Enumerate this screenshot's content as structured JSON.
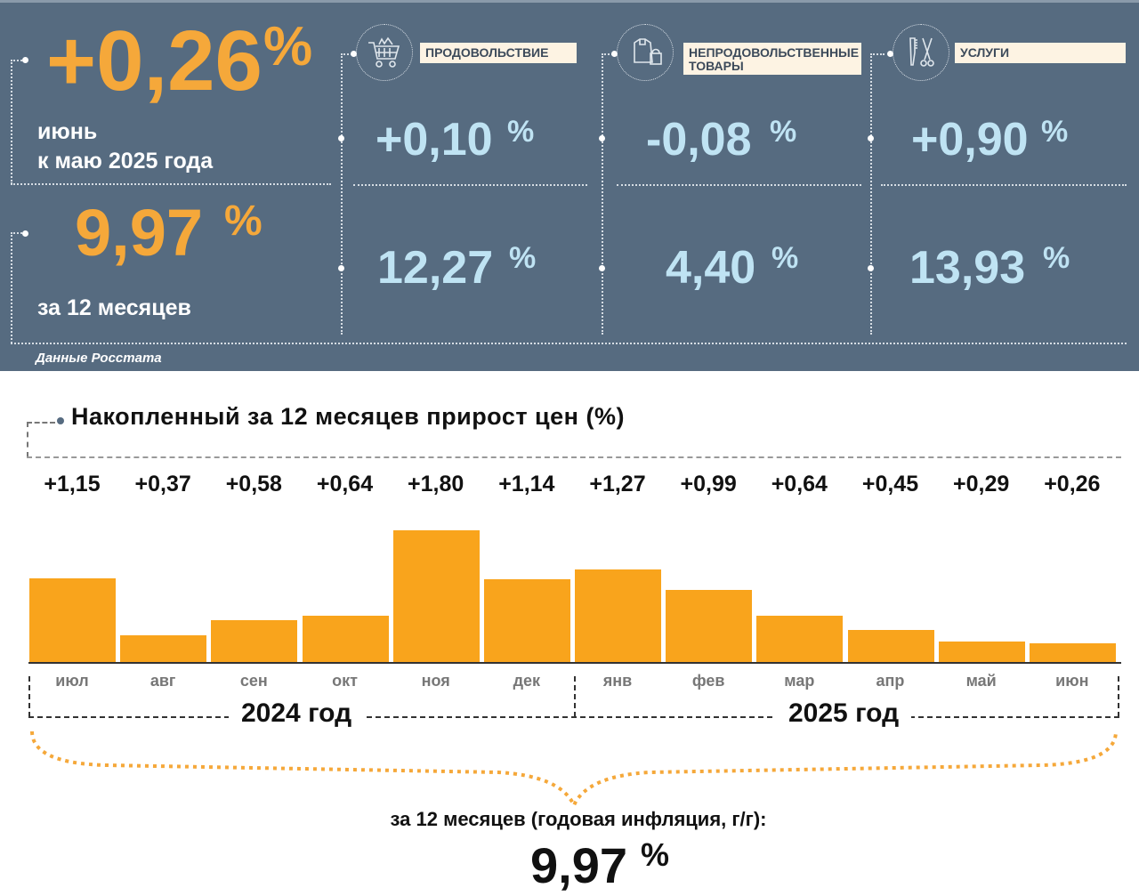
{
  "summary": {
    "monthly": {
      "value": "+0,26",
      "pct": "%",
      "label1": "июнь",
      "label2": "к маю 2025 года"
    },
    "annual": {
      "value": "9,97",
      "pct": "%",
      "label": "за 12 месяцев"
    },
    "source": "Данные Росстата"
  },
  "categories": [
    {
      "name": "ПРОДОВОЛЬСТВИЕ",
      "icon": "shopping-cart-icon",
      "monthly": "+0,10",
      "annual": "12,27"
    },
    {
      "name": "НЕПРОДОВОЛЬСТВЕННЫЕ ТОВАРЫ",
      "icon": "clothing-bag-icon",
      "monthly": "-0,08",
      "annual": "4,40"
    },
    {
      "name": "УСЛУГИ",
      "icon": "comb-scissors-icon",
      "monthly": "+0,90",
      "annual": "13,93"
    }
  ],
  "pct_sign": "%",
  "chart_data": {
    "type": "bar",
    "title": "Накопленный за 12 месяцев прирост цен (%)",
    "categories": [
      "июл",
      "авг",
      "сен",
      "окт",
      "ноя",
      "дек",
      "янв",
      "фев",
      "мар",
      "апр",
      "май",
      "июн"
    ],
    "values": [
      1.15,
      0.37,
      0.58,
      0.64,
      1.8,
      1.14,
      1.27,
      0.99,
      0.64,
      0.45,
      0.29,
      0.26
    ],
    "value_labels": [
      "+1,15",
      "+0,37",
      "+0,58",
      "+0,64",
      "+1,80",
      "+1,14",
      "+1,27",
      "+0,99",
      "+0,64",
      "+0,45",
      "+0,29",
      "+0,26"
    ],
    "year_groups": [
      "2024 год",
      "2025 год"
    ],
    "bar_color": "#f9a41c",
    "ylim": [
      0,
      1.9
    ]
  },
  "footer": {
    "label": "за 12 месяцев (годовая инфляция, г/г):",
    "value": "9,97",
    "pct": "%"
  }
}
